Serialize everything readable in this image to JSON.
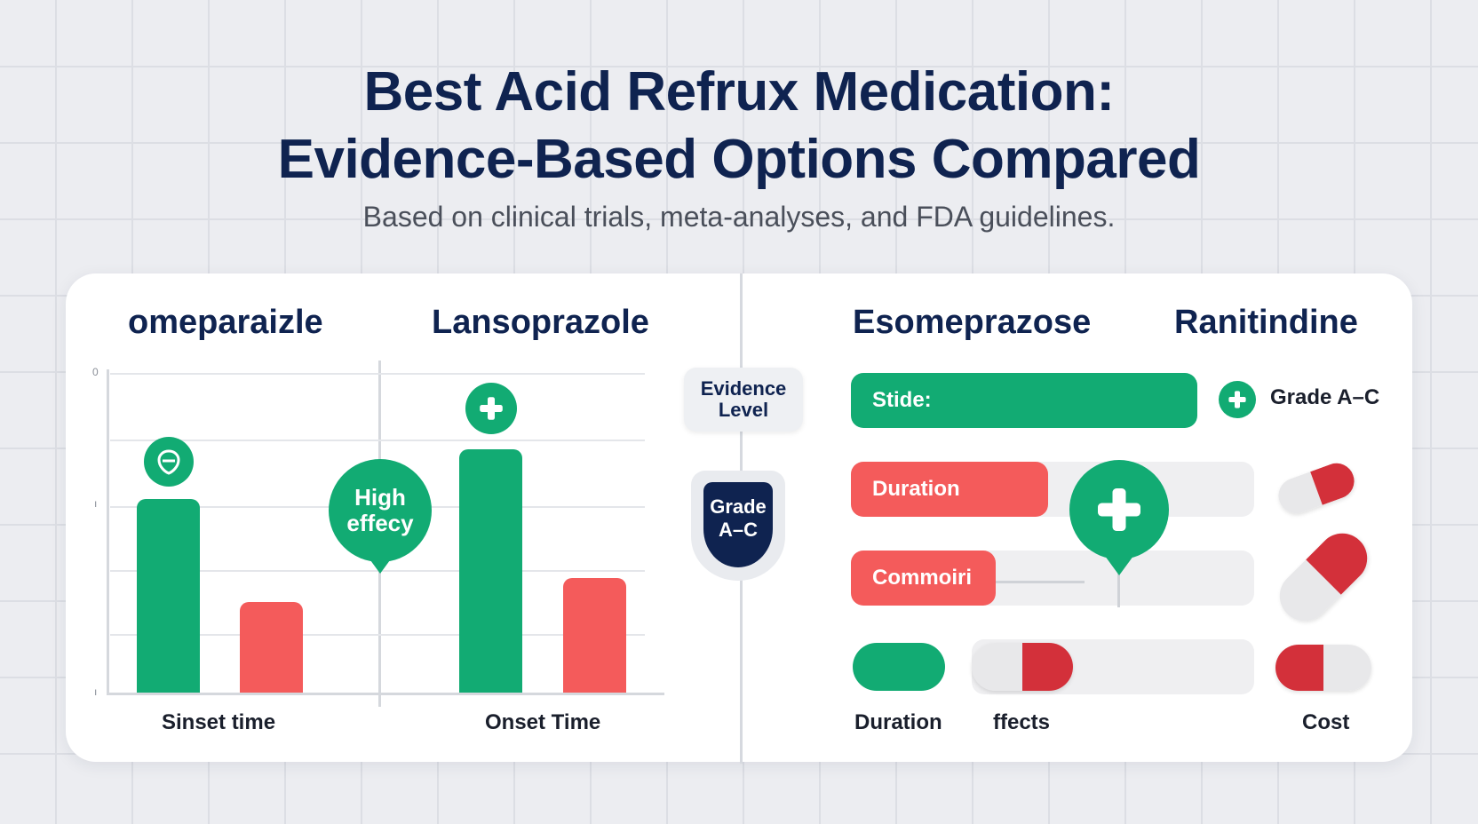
{
  "header": {
    "title_line1": "Best Acid Refrux Medication:",
    "title_line2": "Evidence-Based Options Compared",
    "subtitle": "Based on clinical trials, meta-analyses, and FDA guidelines."
  },
  "left_panel": {
    "col1_title": "omeparaizle",
    "col2_title": "Lansoprazole",
    "ticks": [
      "0",
      "ı",
      "ı"
    ],
    "pin_label_line1": "High",
    "pin_label_line2": "effecy",
    "xlabel1": "Sinset time",
    "xlabel2": "Onset Time",
    "bar_levels": {
      "omeprazole_green": 0.59,
      "omeprazole_red": 0.27,
      "lansoprazole_green": 0.74,
      "lansoprazole_red": 0.34
    }
  },
  "center": {
    "evidence_line1": "Evidence",
    "evidence_line2": "Level",
    "grade_line1": "Grade",
    "grade_line2": "A–C"
  },
  "right_panel": {
    "col3_title": "Esomeprazose",
    "col4_title": "Ranitindine",
    "bars": [
      {
        "label": "Stide:",
        "color": "#12ab73",
        "level": 1.0
      },
      {
        "label": "Duration",
        "color": "#f45b5b",
        "level": 0.49
      },
      {
        "label": "Commoiri",
        "color": "#f45b5b",
        "level": 0.36
      }
    ],
    "grade_text": "Grade A–C",
    "bottom_labels": {
      "duration": "Duration",
      "effects": "ffects",
      "cost": "Cost"
    }
  },
  "colors": {
    "navy": "#0f2350",
    "green": "#12ab73",
    "red": "#f45b5b",
    "dark_red": "#d3303a"
  },
  "icons": [
    "shield-leaf-icon",
    "plus-icon",
    "pill-capsule-icon"
  ]
}
